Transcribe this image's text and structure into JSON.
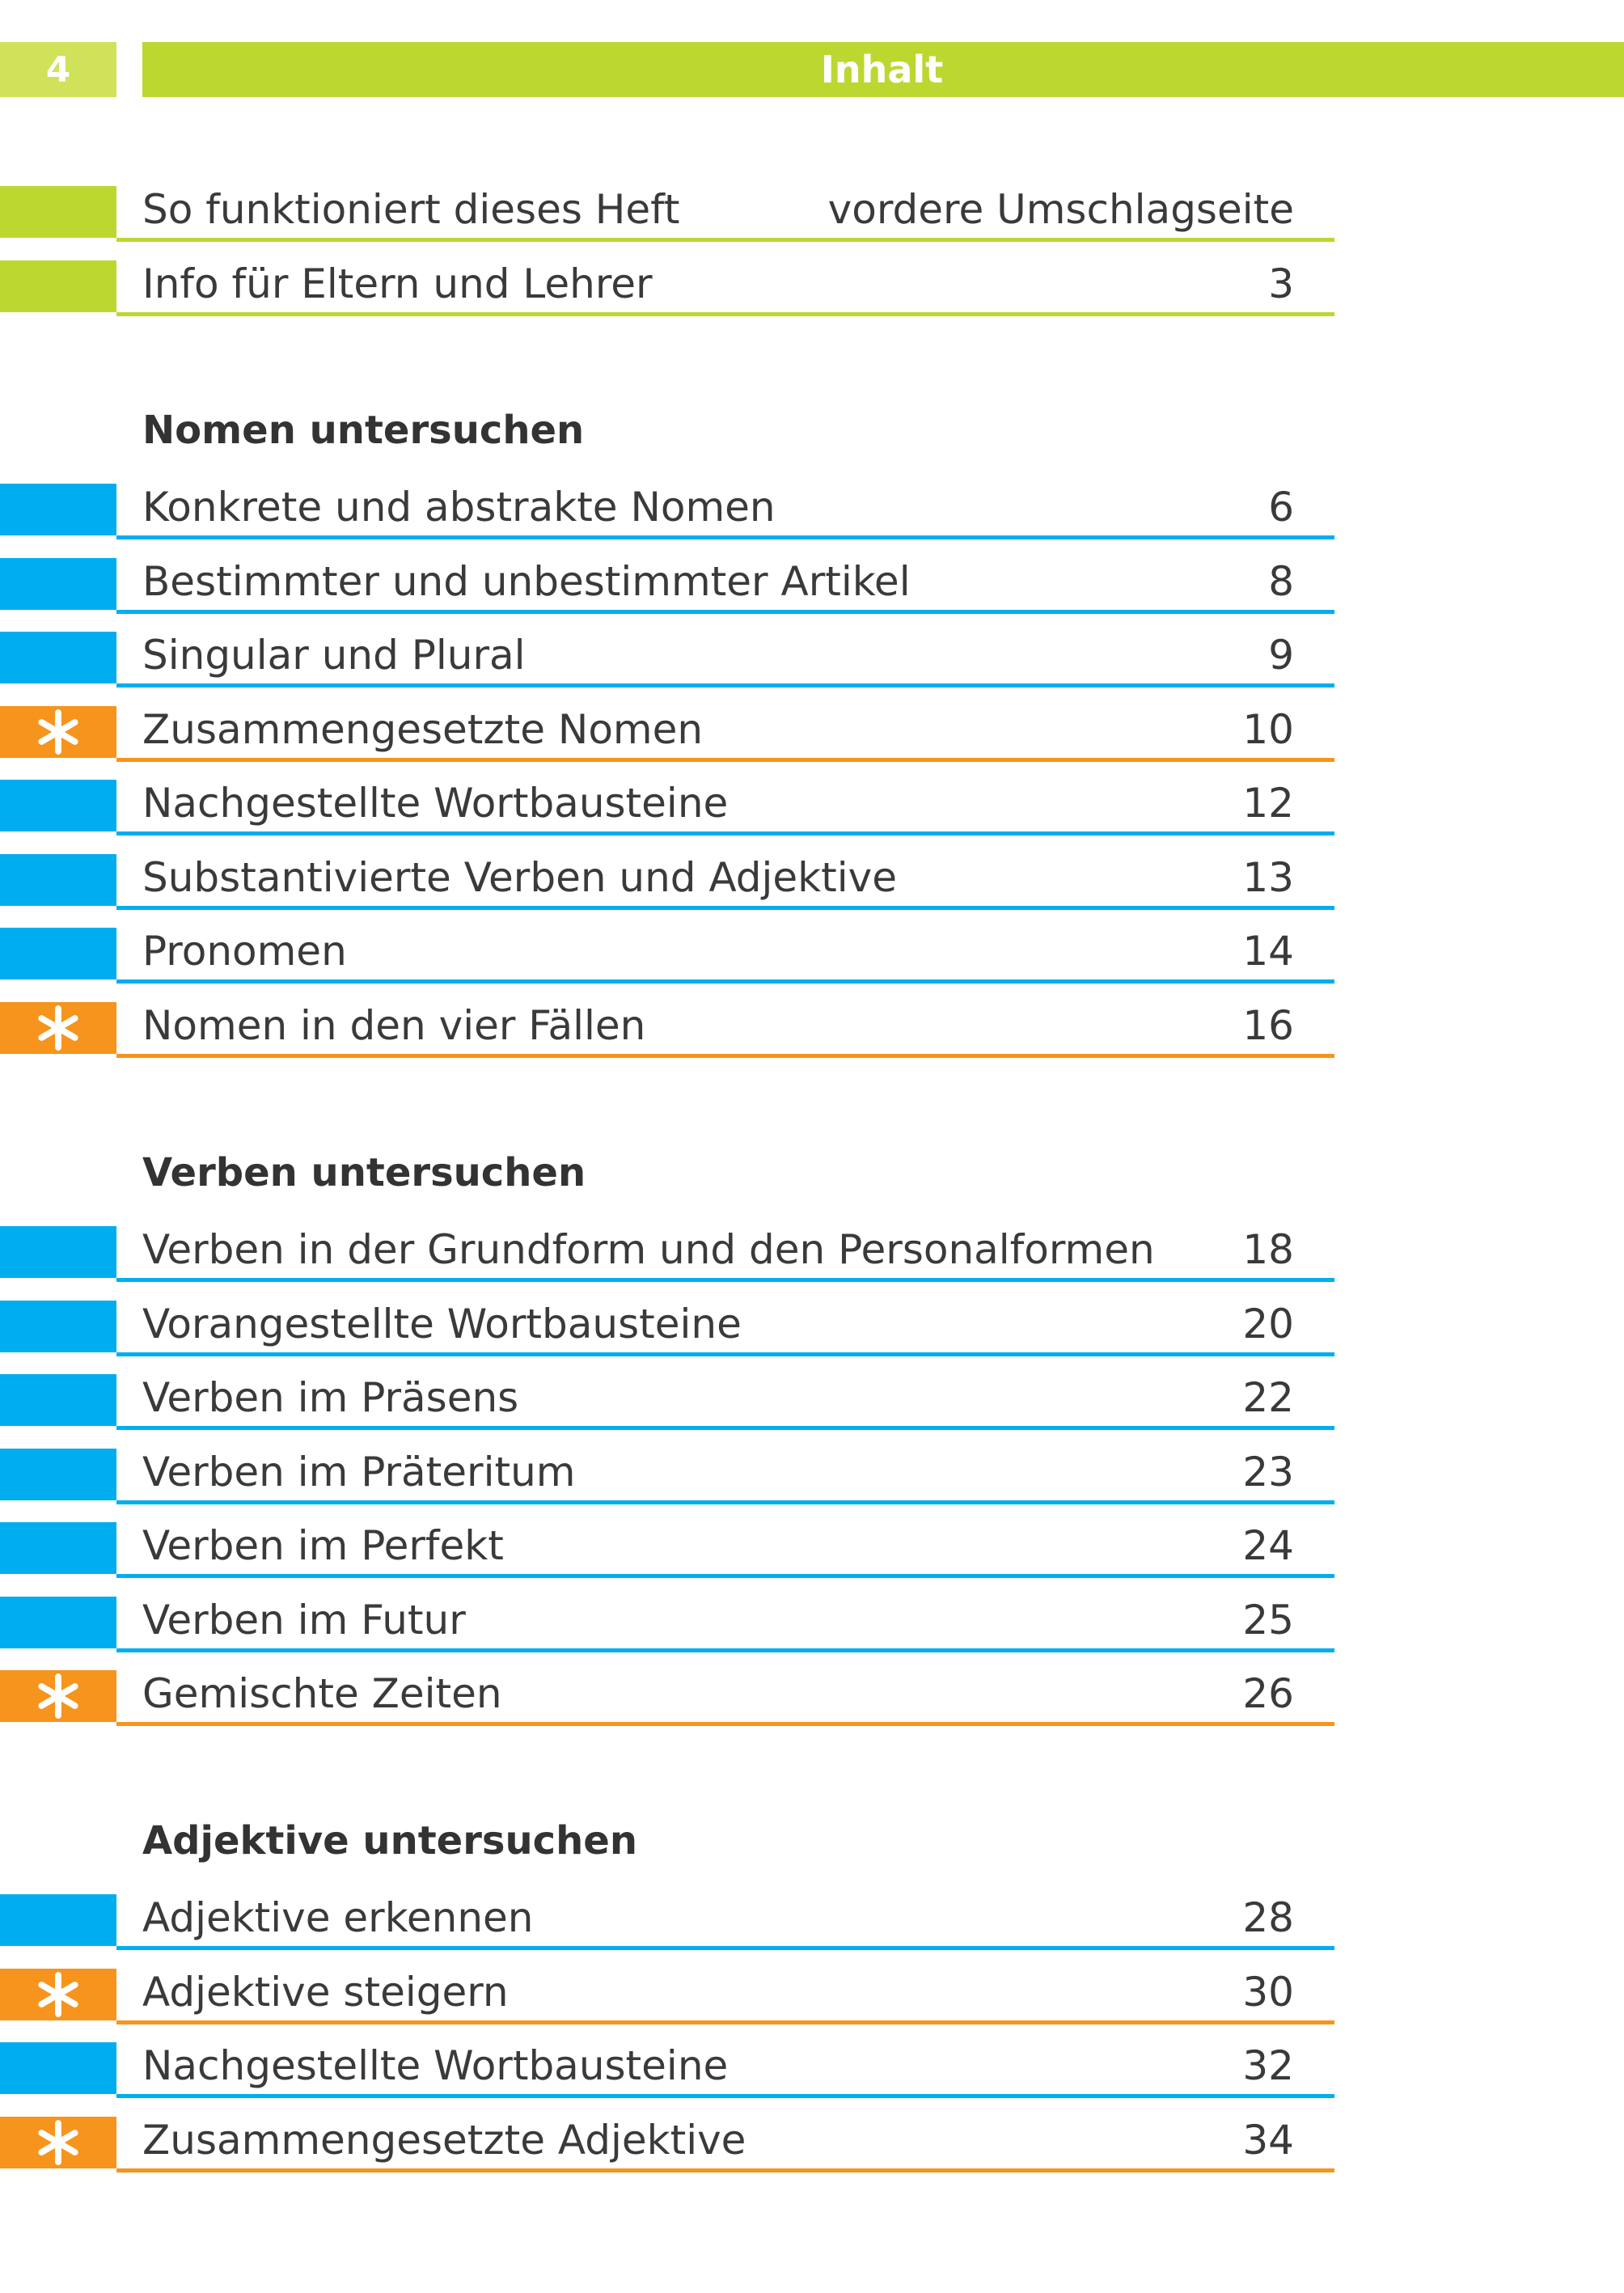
{
  "header": {
    "page_number": "4",
    "title": "Inhalt"
  },
  "colors": {
    "green": "#bcd830",
    "green_light": "#cfe25a",
    "blue": "#00aeef",
    "orange": "#f7941d"
  },
  "intro": [
    {
      "label": "So funktioniert dieses Heft",
      "page": "vordere Umschlagseite",
      "kind": "green"
    },
    {
      "label": "Info für Eltern und Lehrer",
      "page": "3",
      "kind": "green"
    }
  ],
  "sections": [
    {
      "title": "Nomen untersuchen",
      "items": [
        {
          "label": "Konkrete und abstrakte Nomen",
          "page": "6",
          "kind": "blue"
        },
        {
          "label": "Bestimmter und unbestimmter Artikel",
          "page": "8",
          "kind": "blue"
        },
        {
          "label": "Singular und Plural",
          "page": "9",
          "kind": "blue"
        },
        {
          "label": "Zusammengesetzte Nomen",
          "page": "10",
          "kind": "star"
        },
        {
          "label": "Nachgestellte Wortbausteine",
          "page": "12",
          "kind": "blue"
        },
        {
          "label": "Substantivierte Verben und Adjektive",
          "page": "13",
          "kind": "blue"
        },
        {
          "label": "Pronomen",
          "page": "14",
          "kind": "blue"
        },
        {
          "label": "Nomen in den vier Fällen",
          "page": "16",
          "kind": "star"
        }
      ]
    },
    {
      "title": "Verben untersuchen",
      "items": [
        {
          "label": "Verben in der Grundform und den Personalformen",
          "page": "18",
          "kind": "blue"
        },
        {
          "label": "Vorangestellte Wortbausteine",
          "page": "20",
          "kind": "blue"
        },
        {
          "label": "Verben im Präsens",
          "page": "22",
          "kind": "blue"
        },
        {
          "label": "Verben im Präteritum",
          "page": "23",
          "kind": "blue"
        },
        {
          "label": "Verben im Perfekt",
          "page": "24",
          "kind": "blue"
        },
        {
          "label": "Verben im Futur",
          "page": "25",
          "kind": "blue"
        },
        {
          "label": "Gemischte Zeiten",
          "page": "26",
          "kind": "star"
        }
      ]
    },
    {
      "title": "Adjektive untersuchen",
      "items": [
        {
          "label": "Adjektive erkennen",
          "page": "28",
          "kind": "blue"
        },
        {
          "label": "Adjektive steigern",
          "page": "30",
          "kind": "star"
        },
        {
          "label": "Nachgestellte Wortbausteine",
          "page": "32",
          "kind": "blue"
        },
        {
          "label": "Zusammengesetzte Adjektive",
          "page": "34",
          "kind": "star"
        }
      ]
    }
  ]
}
